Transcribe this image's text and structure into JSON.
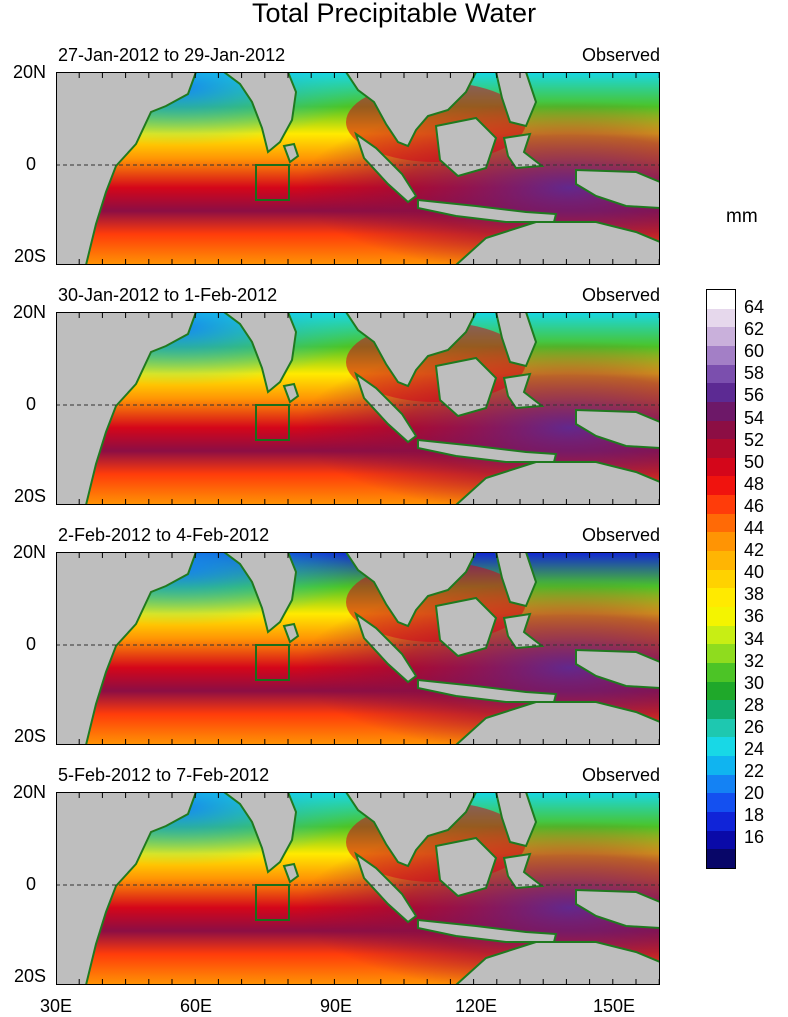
{
  "title": "Total Precipitable Water",
  "units": "mm",
  "panels": [
    {
      "period": "27-Jan-2012 to 29-Jan-2012",
      "label": "Observed"
    },
    {
      "period": "30-Jan-2012 to 1-Feb-2012",
      "label": "Observed"
    },
    {
      "period": "2-Feb-2012 to 4-Feb-2012",
      "label": "Observed"
    },
    {
      "period": "5-Feb-2012 to 7-Feb-2012",
      "label": "Observed"
    }
  ],
  "lat_labels": [
    "20N",
    "0",
    "20S"
  ],
  "lon_labels": [
    "30E",
    "60E",
    "90E",
    "120E",
    "150E"
  ],
  "colorbar": {
    "labels": [
      "64",
      "62",
      "60",
      "58",
      "56",
      "54",
      "52",
      "50",
      "48",
      "46",
      "44",
      "42",
      "40",
      "38",
      "36",
      "34",
      "32",
      "30",
      "28",
      "26",
      "24",
      "22",
      "20",
      "18",
      "16"
    ],
    "colors": [
      "#ffffff",
      "#e6d8ec",
      "#c9b0db",
      "#a37fc6",
      "#7b4fae",
      "#5c2a93",
      "#6d1868",
      "#8c0e44",
      "#b00a2c",
      "#d4061a",
      "#f0130e",
      "#ff3c0a",
      "#ff6a06",
      "#ff9404",
      "#ffb503",
      "#ffd200",
      "#ffea00",
      "#f4f400",
      "#c8ee14",
      "#8fdc1e",
      "#4cc426",
      "#1fa82a",
      "#12ae6e",
      "#1ec8b0",
      "#18d8e6",
      "#10b4f0",
      "#1482f4",
      "#1450f0",
      "#1024d8",
      "#0a0aa8",
      "#080668"
    ]
  },
  "map_colors": {
    "land": "#bebebe",
    "coast": "#1f7a1f",
    "box": "#1a6e1a"
  }
}
